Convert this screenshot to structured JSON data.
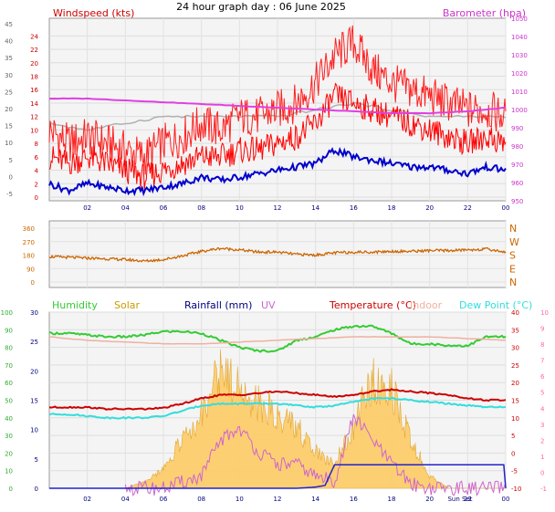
{
  "title": "24 hour graph day : 06 June 2025",
  "colors": {
    "wind": "#ff0000",
    "gust": "#ff2020",
    "baro": "#e040e0",
    "avgwind": "#0000cc",
    "grey": "#b0b0b0",
    "dir": "#cc6600",
    "humidity": "#33cc33",
    "solar": "#cc9900",
    "rain": "#000080",
    "uv": "#cc66cc",
    "temp": "#cc0000",
    "indoor": "#f0b0a0",
    "dew": "#33dddd"
  },
  "chart_data": [
    {
      "type": "line",
      "name": "wind-baro-panel",
      "left_axis_label": "Windspeed (kts)",
      "right_axis_label": "Barometer (hpa)",
      "x_ticks": [
        "02",
        "04",
        "06",
        "08",
        "10",
        "12",
        "14",
        "16",
        "18",
        "20",
        "22",
        "00"
      ],
      "x_hours": [
        2,
        4,
        6,
        8,
        10,
        12,
        14,
        16,
        18,
        20,
        22,
        24
      ],
      "left_outer_ticks": [
        "-5",
        "0",
        "5",
        "10",
        "15",
        "20",
        "25",
        "30",
        "35",
        "40",
        "45"
      ],
      "left_inner_ticks": [
        "0",
        "2",
        "4",
        "6",
        "8",
        "10",
        "12",
        "14",
        "16",
        "18",
        "20",
        "22",
        "24"
      ],
      "right_ticks": [
        "950",
        "960",
        "970",
        "980",
        "990",
        "1000",
        "1010",
        "1020",
        "1030",
        "1040",
        "1050"
      ],
      "windspeed_ylim": [
        0,
        25
      ],
      "barometer_ylim": [
        950,
        1050
      ],
      "series": [
        {
          "name": "Windspeed",
          "hours": [
            0,
            1,
            2,
            3,
            4,
            5,
            6,
            7,
            8,
            9,
            10,
            11,
            12,
            13,
            14,
            15,
            16,
            17,
            18,
            19,
            20,
            21,
            22,
            23,
            24
          ],
          "values": [
            6,
            5,
            6,
            5,
            4,
            3,
            4,
            5,
            6,
            6,
            7,
            7,
            8,
            9,
            11,
            15,
            14,
            13,
            12,
            11,
            10,
            9,
            8,
            9,
            8
          ]
        },
        {
          "name": "Gust",
          "hours": [
            0,
            1,
            2,
            3,
            4,
            5,
            6,
            7,
            8,
            9,
            10,
            11,
            12,
            13,
            14,
            15,
            16,
            17,
            18,
            19,
            20,
            21,
            22,
            23,
            24
          ],
          "values": [
            10,
            8,
            9,
            8,
            7,
            6,
            8,
            9,
            11,
            10,
            12,
            12,
            13,
            14,
            17,
            21,
            23,
            19,
            17,
            16,
            15,
            14,
            13,
            13,
            12
          ]
        },
        {
          "name": "Barometer",
          "hours": [
            0,
            2,
            4,
            6,
            8,
            10,
            12,
            14,
            16,
            18,
            20,
            22,
            24
          ],
          "values": [
            1006,
            1006,
            1005,
            1004,
            1003,
            1002,
            1001,
            1000,
            999,
            998,
            998,
            999,
            1001
          ]
        },
        {
          "name": "Average wind",
          "hours": [
            0,
            1,
            2,
            3,
            4,
            5,
            6,
            7,
            8,
            9,
            10,
            11,
            12,
            13,
            14,
            15,
            16,
            17,
            18,
            19,
            20,
            21,
            22,
            23,
            24
          ],
          "values": [
            2,
            1,
            2,
            1.5,
            1,
            1,
            1.5,
            2,
            3,
            2.5,
            3,
            3.5,
            4,
            4.5,
            5,
            7,
            6,
            5.5,
            5,
            4.5,
            4.5,
            4,
            3.5,
            4.5,
            4
          ]
        },
        {
          "name": "Grey",
          "hours": [
            0,
            2,
            4,
            6,
            8,
            10,
            12,
            14,
            16,
            18,
            20,
            22,
            24
          ],
          "values": [
            11,
            10,
            11,
            12,
            12,
            12,
            12,
            13,
            14,
            13,
            12,
            12,
            12
          ]
        }
      ]
    },
    {
      "type": "line",
      "name": "direction-panel",
      "left_ticks": [
        "360",
        "270",
        "180",
        "90",
        "0"
      ],
      "right_ticks": [
        "N",
        "W",
        "S",
        "E",
        "N"
      ],
      "ylim": [
        0,
        360
      ],
      "series": [
        {
          "name": "Wind direction",
          "hours": [
            0,
            1,
            2,
            3,
            4,
            5,
            6,
            7,
            8,
            9,
            10,
            11,
            12,
            13,
            14,
            15,
            16,
            17,
            18,
            19,
            20,
            21,
            22,
            23,
            24
          ],
          "values": [
            170,
            165,
            160,
            155,
            150,
            140,
            150,
            175,
            205,
            225,
            215,
            200,
            200,
            185,
            180,
            195,
            200,
            200,
            205,
            205,
            210,
            210,
            215,
            220,
            200
          ]
        }
      ]
    },
    {
      "type": "area",
      "name": "temperature-panel",
      "legend": [
        "Humidity",
        "Solar",
        "Rainfall (mm)",
        "UV",
        "Temperature (°C)",
        "Indoor",
        "Dew Point (°C)"
      ],
      "x_ticks": [
        "02",
        "04",
        "06",
        "08",
        "10",
        "12",
        "14",
        "16",
        "18",
        "20",
        "Sun Set",
        "22",
        "00"
      ],
      "left_outer_ticks": [
        "0",
        "10",
        "20",
        "30",
        "40",
        "50",
        "60",
        "70",
        "80",
        "90",
        "100"
      ],
      "left_inner_ticks": [
        "0",
        "5",
        "10",
        "15",
        "20",
        "25",
        "30"
      ],
      "right_ticks_temp": [
        "-10",
        "-5",
        "0",
        "5",
        "10",
        "15",
        "20",
        "25",
        "30",
        "35",
        "40"
      ],
      "right_ticks_uv": [
        "-1",
        "0",
        "1",
        "2",
        "3",
        "4",
        "5",
        "6",
        "7",
        "8",
        "9",
        "10"
      ],
      "temp_ylim": [
        -10,
        40
      ],
      "series": [
        {
          "name": "Humidity",
          "hours": [
            0,
            1,
            2,
            3,
            4,
            5,
            6,
            7,
            8,
            9,
            10,
            11,
            12,
            13,
            14,
            15,
            16,
            17,
            18,
            19,
            20,
            21,
            22,
            23,
            24
          ],
          "values": [
            88,
            88,
            87,
            86,
            86,
            87,
            89,
            89,
            88,
            84,
            80,
            78,
            78,
            84,
            86,
            90,
            92,
            92,
            88,
            82,
            82,
            81,
            81,
            86,
            86
          ]
        },
        {
          "name": "Temperature",
          "hours": [
            0,
            1,
            2,
            3,
            4,
            5,
            6,
            7,
            8,
            9,
            10,
            11,
            12,
            13,
            14,
            15,
            16,
            17,
            18,
            19,
            20,
            21,
            22,
            23,
            24
          ],
          "values": [
            13,
            13,
            13,
            12.5,
            12.5,
            12.5,
            12.8,
            14,
            15.5,
            16.5,
            16.5,
            17,
            17.5,
            17,
            16.5,
            16,
            16.5,
            17.5,
            18,
            17.5,
            17,
            16.5,
            15.5,
            15,
            15
          ]
        },
        {
          "name": "Indoor",
          "hours": [
            0,
            2,
            4,
            6,
            8,
            10,
            12,
            14,
            16,
            18,
            20,
            22,
            24
          ],
          "values": [
            33,
            32,
            31.5,
            31,
            31,
            31.5,
            32,
            32.5,
            33,
            33,
            33,
            32.5,
            32
          ]
        },
        {
          "name": "Dew Point",
          "hours": [
            0,
            1,
            2,
            3,
            4,
            5,
            6,
            7,
            8,
            9,
            10,
            11,
            12,
            13,
            14,
            15,
            16,
            17,
            18,
            19,
            20,
            21,
            22,
            23,
            24
          ],
          "values": [
            11,
            11,
            10.5,
            10,
            10,
            10,
            10.5,
            12,
            13.5,
            14,
            14,
            14,
            14,
            13.5,
            13,
            13.5,
            14.5,
            15.5,
            15.5,
            15,
            14.5,
            14,
            13.5,
            13,
            13
          ]
        },
        {
          "name": "Solar",
          "hours": [
            4,
            5,
            6,
            7,
            8,
            9,
            10,
            11,
            12,
            13,
            14,
            15,
            16,
            17,
            18,
            19,
            20,
            21,
            24
          ],
          "values": [
            0,
            0.5,
            1.5,
            4,
            6,
            10,
            8,
            7,
            6,
            5,
            3,
            2,
            5,
            9,
            8,
            4,
            1,
            0,
            0
          ]
        },
        {
          "name": "UV",
          "hours": [
            4,
            6,
            8,
            9,
            10,
            11,
            12,
            13,
            14,
            15,
            16,
            17,
            18,
            19,
            20,
            24
          ],
          "values": [
            0,
            0,
            0.5,
            2,
            2.5,
            1.5,
            1,
            1,
            0.5,
            0.3,
            3,
            2,
            1,
            0.2,
            0,
            0
          ]
        },
        {
          "name": "Rainfall",
          "hours": [
            0,
            12,
            13,
            14,
            14.5,
            15,
            16,
            17,
            18,
            19,
            20,
            21,
            22,
            23.9,
            24
          ],
          "values": [
            0,
            0,
            0,
            0.2,
            0.5,
            4,
            4,
            4,
            4,
            4,
            4,
            4,
            4,
            4,
            0
          ]
        }
      ]
    }
  ]
}
